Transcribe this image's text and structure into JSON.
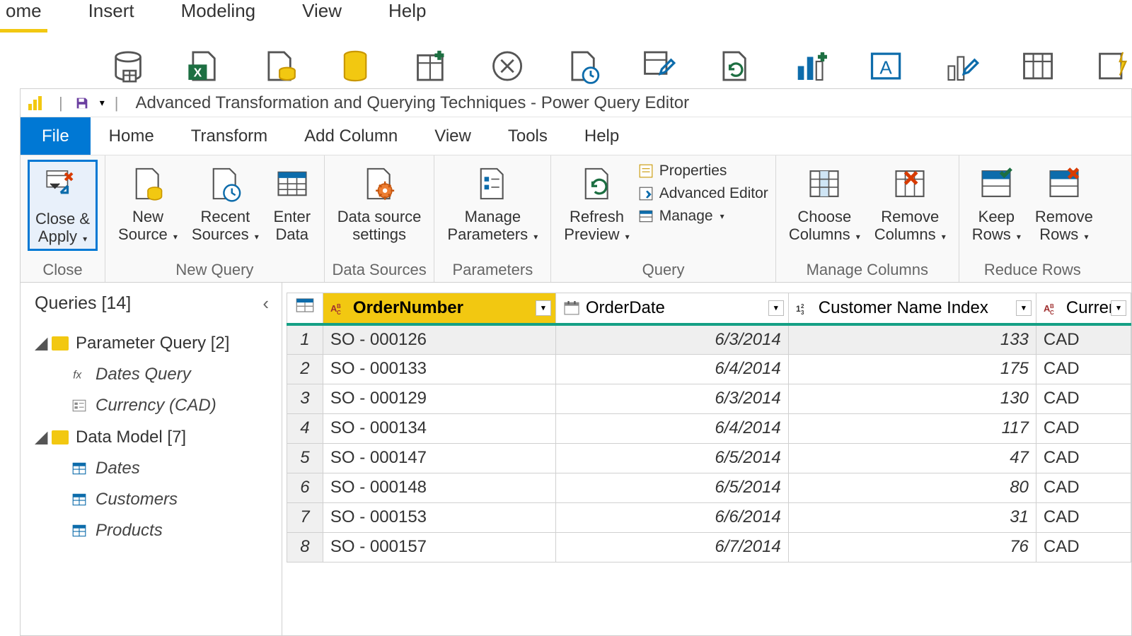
{
  "bg": {
    "tabs": [
      "ome",
      "Insert",
      "Modeling",
      "View",
      "Help"
    ]
  },
  "titlebar": {
    "title": "Advanced Transformation and Querying Techniques - Power Query Editor"
  },
  "ribbon_tabs": [
    "File",
    "Home",
    "Transform",
    "Add Column",
    "View",
    "Tools",
    "Help"
  ],
  "ribbon": {
    "close": {
      "close_apply": "Close &\nApply",
      "group": "Close"
    },
    "new_query": {
      "new_source": "New\nSource",
      "recent": "Recent\nSources",
      "enter": "Enter\nData",
      "group": "New Query"
    },
    "data_sources": {
      "settings": "Data source\nsettings",
      "group": "Data Sources"
    },
    "parameters": {
      "manage": "Manage\nParameters",
      "group": "Parameters"
    },
    "query": {
      "refresh": "Refresh\nPreview",
      "properties": "Properties",
      "advanced": "Advanced Editor",
      "manage": "Manage",
      "group": "Query"
    },
    "manage_cols": {
      "choose": "Choose\nColumns",
      "remove": "Remove\nColumns",
      "group": "Manage Columns"
    },
    "reduce_rows": {
      "keep": "Keep\nRows",
      "remove": "Remove\nRows",
      "group": "Reduce Rows"
    }
  },
  "queries_panel": {
    "header": "Queries [14]",
    "folders": [
      {
        "name": "Parameter Query [2]",
        "items": [
          {
            "icon": "fx",
            "label": "Dates Query"
          },
          {
            "icon": "param",
            "label": "Currency (CAD)"
          }
        ]
      },
      {
        "name": "Data Model [7]",
        "items": [
          {
            "icon": "table",
            "label": "Dates"
          },
          {
            "icon": "table",
            "label": "Customers"
          },
          {
            "icon": "table",
            "label": "Products"
          }
        ]
      }
    ]
  },
  "grid": {
    "columns": [
      {
        "name": "OrderNumber",
        "type": "text",
        "selected": true
      },
      {
        "name": "OrderDate",
        "type": "date",
        "selected": false
      },
      {
        "name": "Customer Name Index",
        "type": "number",
        "selected": false
      },
      {
        "name": "Curren",
        "type": "text",
        "selected": false
      }
    ],
    "rows": [
      [
        "SO - 000126",
        "6/3/2014",
        "133",
        "CAD"
      ],
      [
        "SO - 000133",
        "6/4/2014",
        "175",
        "CAD"
      ],
      [
        "SO - 000129",
        "6/3/2014",
        "130",
        "CAD"
      ],
      [
        "SO - 000134",
        "6/4/2014",
        "117",
        "CAD"
      ],
      [
        "SO - 000147",
        "6/5/2014",
        "47",
        "CAD"
      ],
      [
        "SO - 000148",
        "6/5/2014",
        "80",
        "CAD"
      ],
      [
        "SO - 000153",
        "6/6/2014",
        "31",
        "CAD"
      ],
      [
        "SO - 000157",
        "6/7/2014",
        "76",
        "CAD"
      ]
    ]
  },
  "colors": {
    "accent": "#f2c811",
    "teal": "#14a085",
    "blue": "#0078d4"
  }
}
